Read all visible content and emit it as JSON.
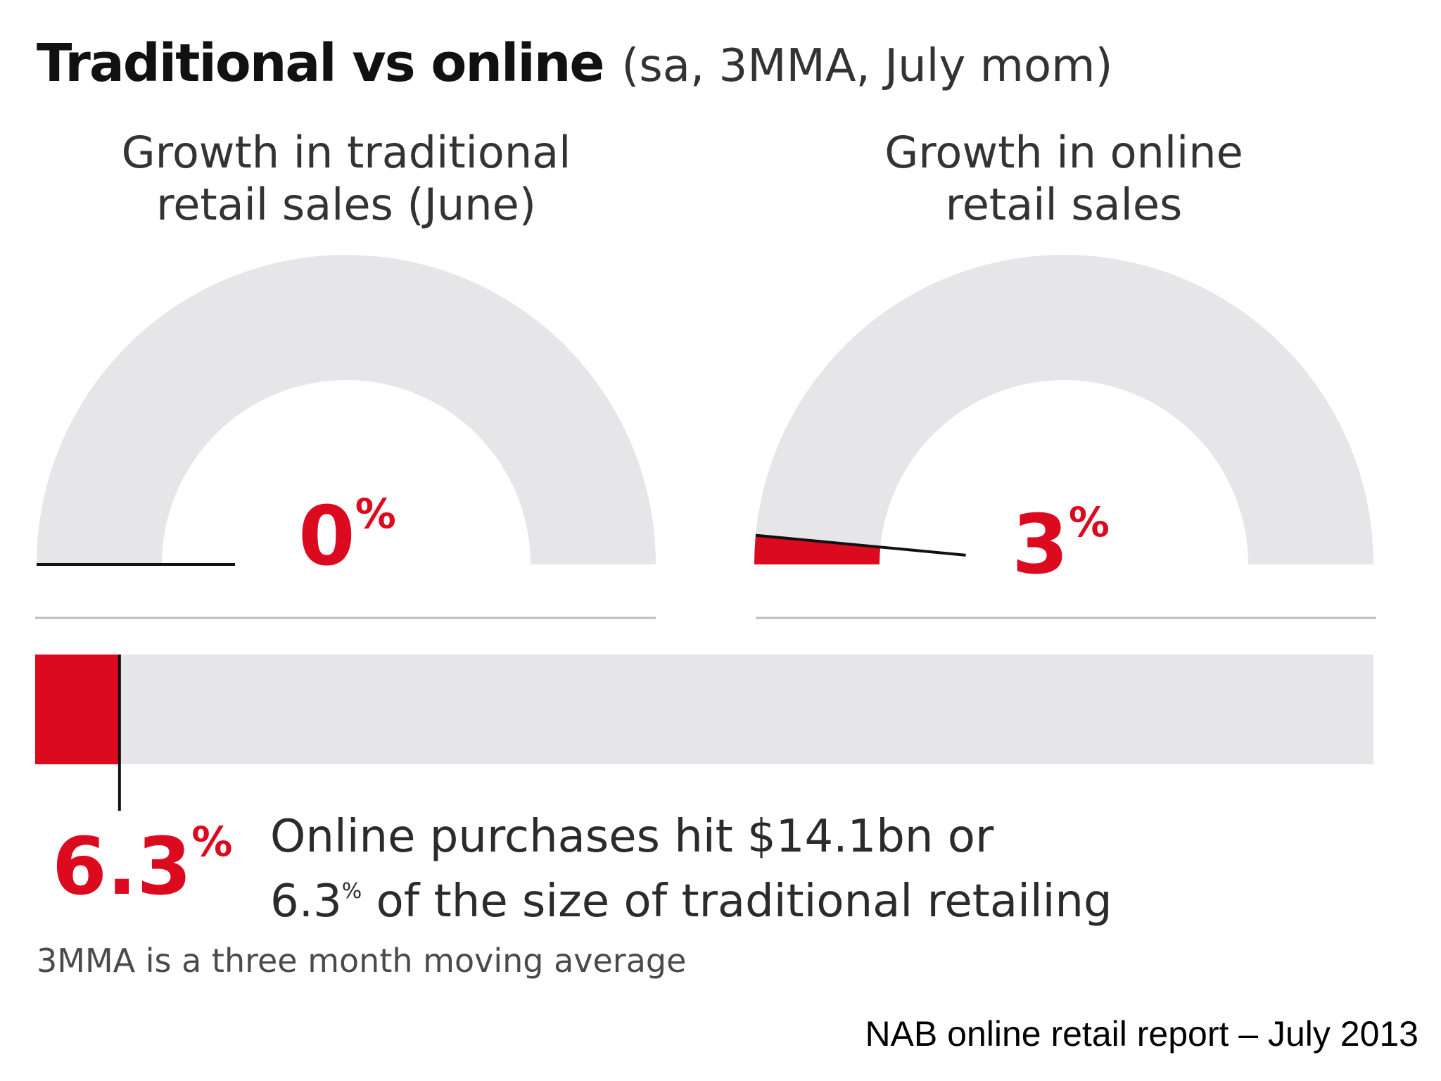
{
  "title": {
    "main": "Traditional vs online",
    "sub": "(sa, 3MMA, July mom)"
  },
  "colors": {
    "accent": "#dc0a1e",
    "track": "#e6e6e8",
    "text": "#1a1a1a",
    "rule": "#bdbdbd"
  },
  "chart_data": [
    {
      "type": "gauge",
      "title_lines": [
        "Growth in traditional",
        "retail sales (June)"
      ],
      "value": 0,
      "value_label": "0",
      "unit": "%"
    },
    {
      "type": "gauge",
      "title_lines": [
        "Growth in online",
        "retail sales"
      ],
      "value": 3,
      "value_label": "3",
      "unit": "%"
    },
    {
      "type": "bar",
      "value": 6.3,
      "value_label": "6.3",
      "unit": "%",
      "range": [
        0,
        100
      ]
    }
  ],
  "description": {
    "line1": "Online purchases hit $14.1bn or",
    "line2_value": "6.3",
    "line2_unit": "%",
    "line2_rest": " of the size of traditional retailing"
  },
  "footnote": "3MMA is a three month moving average",
  "source": "NAB online retail report – July 2013"
}
